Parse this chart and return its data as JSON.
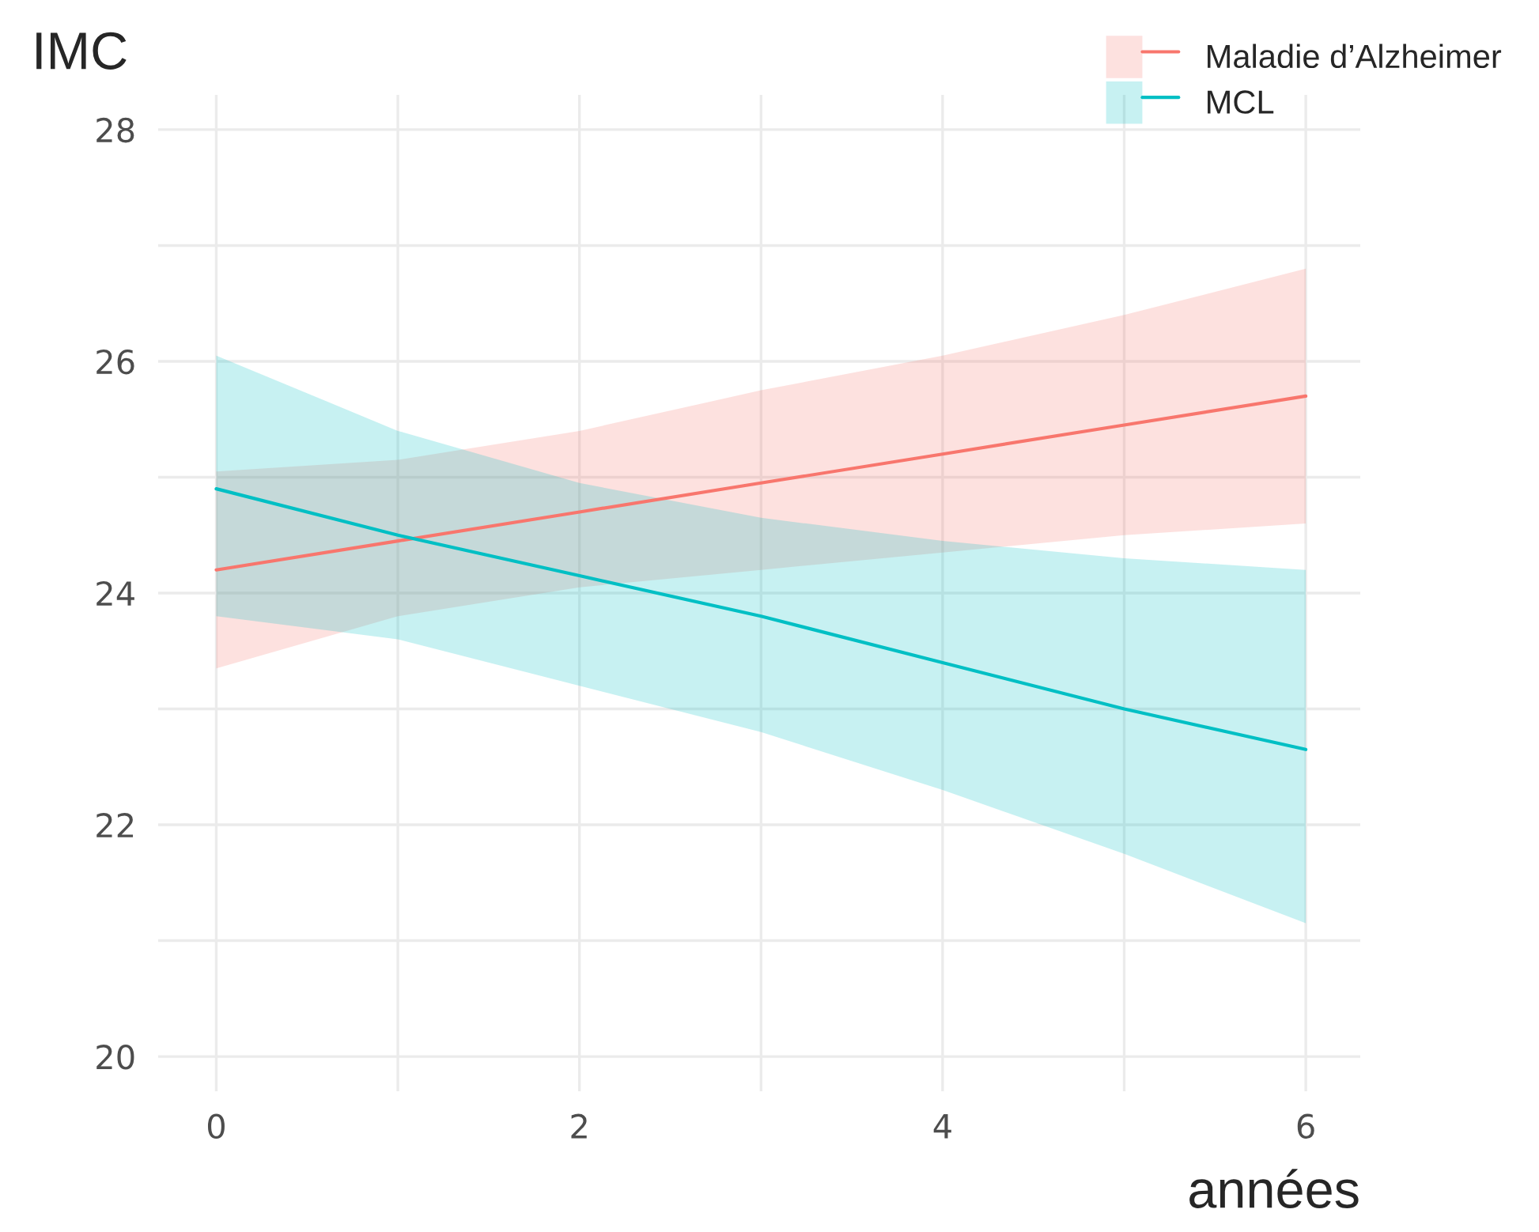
{
  "chart_data": {
    "type": "line",
    "ylabel": "IMC",
    "xlabel": "années",
    "x": [
      0,
      1,
      2,
      3,
      4,
      5,
      6
    ],
    "series": [
      {
        "name": "Maladie d’Alzheimer",
        "color": "#f8766d",
        "values": [
          24.2,
          24.45,
          24.7,
          24.95,
          25.2,
          25.45,
          25.7
        ],
        "lower": [
          23.35,
          23.8,
          24.05,
          24.2,
          24.35,
          24.5,
          24.6
        ],
        "upper": [
          25.05,
          25.15,
          25.4,
          25.75,
          26.05,
          26.4,
          26.8
        ]
      },
      {
        "name": "MCL",
        "color": "#00bfc4",
        "values": [
          24.9,
          24.5,
          24.15,
          23.8,
          23.4,
          23.0,
          22.65
        ],
        "lower": [
          23.8,
          23.6,
          23.2,
          22.8,
          22.3,
          21.75,
          21.15
        ],
        "upper": [
          26.05,
          25.4,
          24.95,
          24.65,
          24.45,
          24.3,
          24.2
        ]
      }
    ],
    "xlim": [
      -0.32,
      6.3
    ],
    "ylim": [
      19.7,
      28.3
    ],
    "xticks": [
      0,
      {
        "value": 1,
        "label": null
      },
      2,
      {
        "value": 3,
        "label": null
      },
      4,
      {
        "value": 5,
        "label": null
      },
      6
    ],
    "yticks": [
      20,
      {
        "value": 21,
        "label": null
      },
      22,
      {
        "value": 23,
        "label": null
      },
      24,
      {
        "value": 25,
        "label": null
      },
      26,
      {
        "value": 27,
        "label": null
      },
      28
    ],
    "grid": true,
    "legend": "top right",
    "marker": "none",
    "line_style": "solid"
  }
}
